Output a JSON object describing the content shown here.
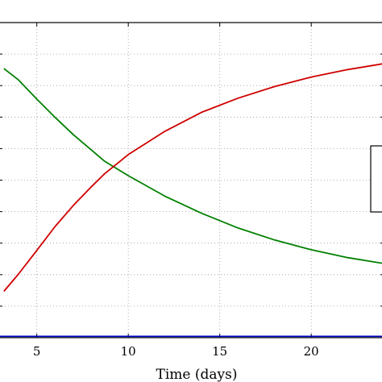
{
  "chart_data": {
    "type": "line",
    "xlabel": "Time (days)",
    "ylabel": "",
    "title": "",
    "xlim": [
      2.9,
      24
    ],
    "ylim": [
      0.0,
      1.0
    ],
    "x_ticks": [
      5,
      10,
      15,
      20
    ],
    "x_tick_labels": [
      "5",
      "10",
      "15",
      "20"
    ],
    "y_gridlines": [
      0.1,
      0.2,
      0.3,
      0.4,
      0.5,
      0.6,
      0.7,
      0.8,
      0.9,
      1.0
    ],
    "grid": true,
    "legend": "right, partially visible, entries cropped",
    "series": [
      {
        "color": "#008000",
        "x": [
          3.2,
          4,
          5,
          6,
          7,
          8,
          8.7,
          10,
          12,
          14,
          16,
          18,
          20,
          22,
          24
        ],
        "values": [
          0.854,
          0.818,
          0.757,
          0.699,
          0.644,
          0.595,
          0.56,
          0.514,
          0.449,
          0.395,
          0.348,
          0.31,
          0.279,
          0.254,
          0.235
        ]
      },
      {
        "color": "#d00000",
        "x": [
          3.2,
          4,
          5,
          6,
          7,
          8,
          8.7,
          10,
          12,
          14,
          16,
          18,
          20,
          22,
          24
        ],
        "values": [
          0.147,
          0.202,
          0.277,
          0.353,
          0.42,
          0.48,
          0.52,
          0.581,
          0.655,
          0.715,
          0.76,
          0.797,
          0.827,
          0.851,
          0.87
        ]
      },
      {
        "color": "#0000c0",
        "x": [
          2.9,
          24
        ],
        "values": [
          0.004,
          0.004
        ]
      }
    ]
  }
}
